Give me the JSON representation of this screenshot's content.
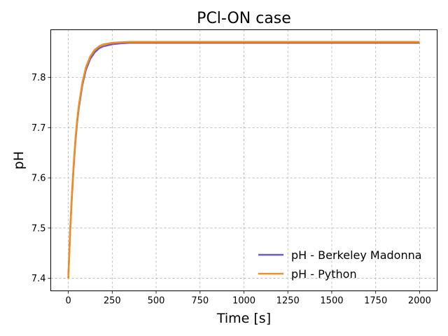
{
  "chart_data": {
    "type": "line",
    "title": "PCl-ON case",
    "xlabel": "Time [s]",
    "ylabel": "pH",
    "xlim": [
      -100,
      2100
    ],
    "ylim": [
      7.375,
      7.895
    ],
    "x_ticks": [
      0,
      250,
      500,
      750,
      1000,
      1250,
      1500,
      1750,
      2000
    ],
    "y_ticks": [
      7.4,
      7.5,
      7.6,
      7.7,
      7.8
    ],
    "y_tick_labels": [
      "7.4",
      "7.5",
      "7.6",
      "7.7",
      "7.8"
    ],
    "grid": true,
    "legend_position": "lower-right",
    "series": [
      {
        "name": "pH - Berkeley Madonna",
        "color": "#6a5acd",
        "x": [
          0,
          10,
          20,
          30,
          40,
          50,
          60,
          80,
          100,
          125,
          150,
          175,
          200,
          250,
          300,
          350,
          400,
          500,
          750,
          1000,
          1250,
          1500,
          1750,
          2000
        ],
        "y": [
          7.4,
          7.49,
          7.56,
          7.62,
          7.67,
          7.71,
          7.74,
          7.785,
          7.815,
          7.837,
          7.85,
          7.858,
          7.862,
          7.866,
          7.868,
          7.869,
          7.869,
          7.869,
          7.869,
          7.869,
          7.869,
          7.869,
          7.869,
          7.869
        ]
      },
      {
        "name": "pH - Python",
        "color": "#f28e1c",
        "x": [
          0,
          10,
          20,
          30,
          40,
          50,
          60,
          80,
          100,
          125,
          150,
          175,
          200,
          250,
          300,
          350,
          400,
          500,
          750,
          1000,
          1250,
          1500,
          1750,
          2000
        ],
        "y": [
          7.4,
          7.49,
          7.565,
          7.625,
          7.675,
          7.715,
          7.745,
          7.79,
          7.82,
          7.842,
          7.855,
          7.862,
          7.866,
          7.869,
          7.87,
          7.871,
          7.871,
          7.871,
          7.871,
          7.871,
          7.871,
          7.871,
          7.871,
          7.871
        ]
      }
    ]
  }
}
